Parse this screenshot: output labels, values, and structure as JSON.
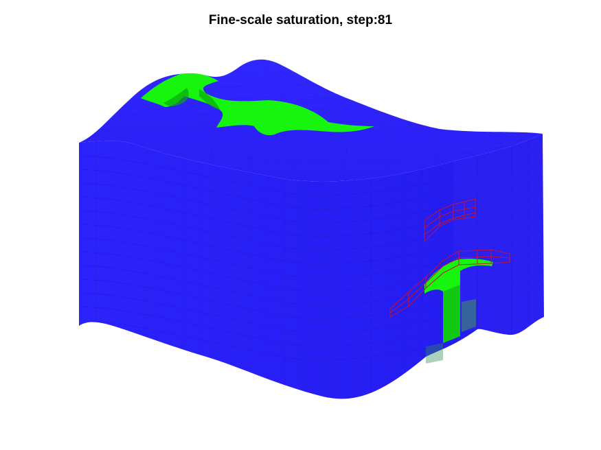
{
  "figure": {
    "title": "Fine-scale saturation, step:81"
  },
  "colors": {
    "background": "#ffffff",
    "rock": "#2a20fa",
    "saturated": "#17f50f",
    "well_outline": "#c8102e",
    "grid_lines": "#1a1480"
  }
}
